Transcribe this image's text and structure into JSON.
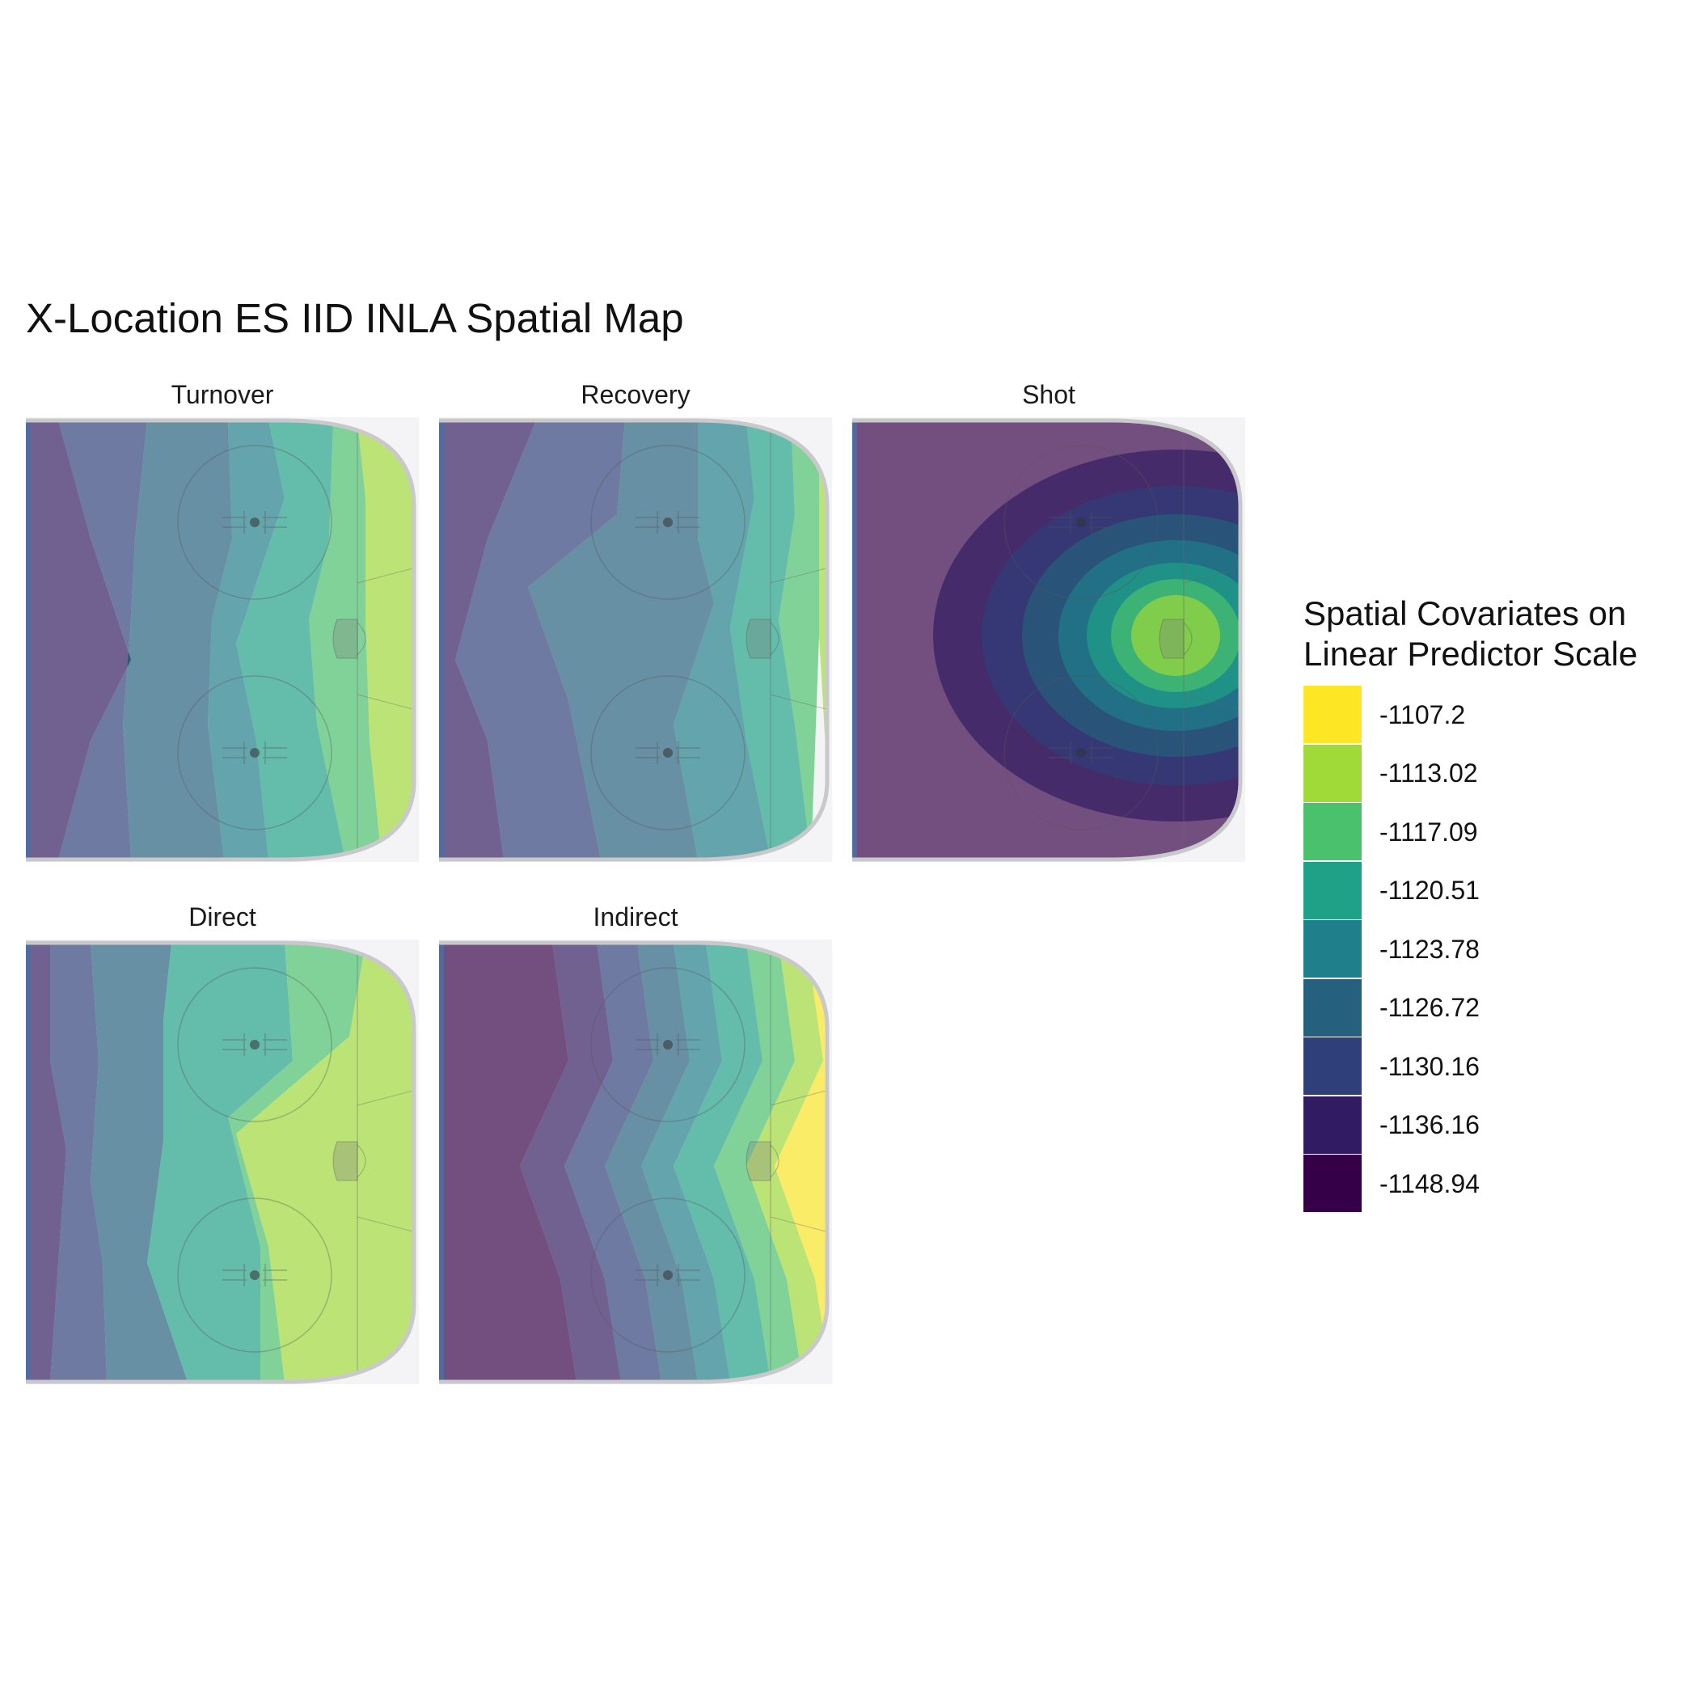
{
  "title": "X-Location ES IID INLA Spatial Map",
  "legend": {
    "title": "Spatial Covariates on\nLinear Predictor Scale",
    "levels": [
      {
        "label": "-1107.2",
        "color": "#fde725"
      },
      {
        "label": "-1113.02",
        "color": "#a0da39"
      },
      {
        "label": "-1117.09",
        "color": "#4ac16d"
      },
      {
        "label": "-1120.51",
        "color": "#1fa187"
      },
      {
        "label": "-1123.78",
        "color": "#1f7f8b"
      },
      {
        "label": "-1126.72",
        "color": "#25607e"
      },
      {
        "label": "-1130.16",
        "color": "#2e3f79"
      },
      {
        "label": "-1136.16",
        "color": "#311b62"
      },
      {
        "label": "-1148.94",
        "color": "#350048"
      }
    ]
  },
  "chart_data": {
    "type": "heatmap",
    "facets": [
      {
        "name": "Turnover",
        "levels_left_to_right": [
          "-1136.16",
          "-1130.16",
          "-1126.72",
          "-1123.78",
          "-1120.51",
          "-1117.09",
          "-1113.02"
        ]
      },
      {
        "name": "Recovery",
        "levels_left_to_right": [
          "-1136.16",
          "-1130.16",
          "-1126.72",
          "-1123.78",
          "-1120.51",
          "-1117.09",
          "-1113.02"
        ]
      },
      {
        "name": "Shot",
        "levels_left_to_right": [
          "-1148.94",
          "-1136.16",
          "-1130.16",
          "-1126.72",
          "-1123.78",
          "-1120.51",
          "-1117.09",
          "-1113.02"
        ]
      },
      {
        "name": "Direct",
        "levels_left_to_right": [
          "-1136.16",
          "-1130.16",
          "-1126.72",
          "-1120.51",
          "-1117.09",
          "-1113.02",
          "-1107.2"
        ]
      },
      {
        "name": "Indirect",
        "levels_left_to_right": [
          "-1148.94",
          "-1136.16",
          "-1130.16",
          "-1126.72",
          "-1123.78",
          "-1120.51",
          "-1117.09",
          "-1113.02",
          "-1107.2"
        ]
      }
    ]
  }
}
